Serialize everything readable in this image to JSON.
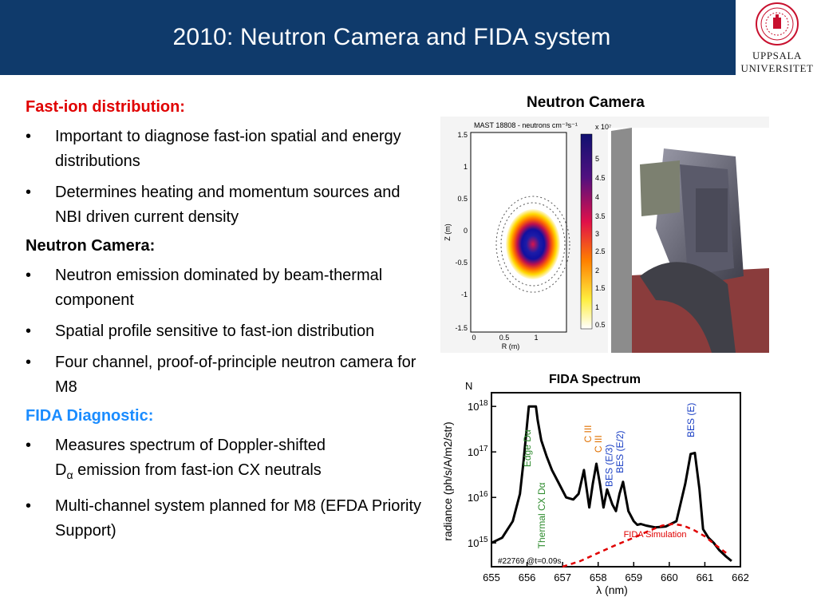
{
  "header": {
    "title": "2010: Neutron Camera and FIDA system",
    "bg": "#0f3a6b"
  },
  "logo": {
    "line1": "UPPSALA",
    "line2": "UNIVERSITET",
    "seal_color": "#c8102e"
  },
  "sections": [
    {
      "heading": "Fast-ion distribution:",
      "color": "#e00000",
      "bullets": [
        "Important to diagnose fast-ion spatial and energy distributions",
        "Determines heating and momentum sources and NBI driven current density"
      ]
    },
    {
      "heading": "Neutron Camera:",
      "color": "#000000",
      "bullets": [
        "Neutron emission dominated by beam-thermal component",
        "Spatial profile sensitive to fast-ion distribution",
        "Four channel, proof-of-principle neutron camera for M8"
      ]
    },
    {
      "heading": "FIDA Diagnostic:",
      "color": "#1a8cff",
      "bullets": [
        "Measures spectrum of Doppler-shifted",
        "Multi-channel system planned for M8 (EFDA Priority Support)"
      ],
      "dalpha_line": {
        "prefix": "D",
        "subscript": "α",
        "suffix": " emission from fast-ion CX neutrals"
      }
    }
  ],
  "neutron_figure": {
    "label": "Neutron Camera",
    "plot_title": "MAST 18808 - neutrons cm⁻³s⁻¹",
    "colorbar_exponent": "x 10⁷",
    "colorbar_ticks": [
      "5",
      "4.5",
      "4",
      "3.5",
      "3",
      "2.5",
      "2",
      "1.5",
      "1",
      "0.5"
    ],
    "y_ticks": [
      "1.5",
      "1",
      "0.5",
      "0",
      "-0.5",
      "-1",
      "-1.5"
    ],
    "x_ticks": [
      "0",
      "0.5",
      "1"
    ],
    "xlabel": "R (m)",
    "ylabel": "Z (m)"
  },
  "chart_data": {
    "type": "line",
    "title": "FIDA Spectrum",
    "top_left_fragment": "N",
    "xlabel": "λ (nm)",
    "ylabel": "radiance (ph/s/A/m2/str)",
    "x_ticks": [
      "655",
      "656",
      "657",
      "658",
      "659",
      "660",
      "661",
      "662"
    ],
    "xlim": [
      655,
      662
    ],
    "y_scale": "log",
    "y_ticks": [
      {
        "base": "10",
        "exp": "18",
        "value": 1e+18
      },
      {
        "base": "10",
        "exp": "17",
        "value": 1e+17
      },
      {
        "base": "10",
        "exp": "16",
        "value": 1e+16
      },
      {
        "base": "10",
        "exp": "15",
        "value": 1000000000000000.0
      }
    ],
    "ylim": [
      300000000000000.0,
      2e+18
    ],
    "shot_label": "#22769 @t=0.09s",
    "series": [
      {
        "name": "",
        "color": "#000000",
        "style": "solid",
        "x": [
          655.0,
          655.3,
          655.6,
          655.8,
          655.9,
          656.0,
          656.05,
          656.15,
          656.25,
          656.3,
          656.4,
          656.55,
          656.7,
          656.9,
          657.1,
          657.3,
          657.45,
          657.6,
          657.75,
          657.85,
          657.95,
          658.05,
          658.15,
          658.25,
          658.4,
          658.5,
          658.6,
          658.7,
          658.85,
          659.0,
          659.1,
          659.2,
          659.35,
          659.6,
          659.9,
          660.2,
          660.45,
          660.6,
          660.72,
          660.85,
          660.95,
          661.1,
          661.25,
          661.4,
          661.6,
          661.75
        ],
        "y": [
          1000000000000000.0,
          1300000000000000.0,
          3000000000000000.0,
          1.2e+16,
          6e+16,
          4e+17,
          1e+18,
          1e+18,
          1e+18,
          5e+17,
          1.8e+17,
          8e+16,
          4e+16,
          2e+16,
          1e+16,
          9000000000000000.0,
          1.2e+16,
          4e+16,
          6000000000000000.0,
          2e+16,
          5.5e+16,
          2e+16,
          6000000000000000.0,
          1.5e+16,
          7000000000000000.0,
          5000000000000000.0,
          1.2e+16,
          2.2e+16,
          5000000000000000.0,
          3000000000000000.0,
          2500000000000000.0,
          2600000000000000.0,
          2400000000000000.0,
          2200000000000000.0,
          2300000000000000.0,
          3000000000000000.0,
          2e+16,
          9e+16,
          9.5e+16,
          1.5e+16,
          2000000000000000.0,
          1300000000000000.0,
          1000000000000000.0,
          700000000000000.0,
          500000000000000.0,
          400000000000000.0
        ]
      },
      {
        "name": "FIDA Simulation",
        "color": "#e00000",
        "style": "dashed",
        "x": [
          657.0,
          657.5,
          658.0,
          658.5,
          659.0,
          659.4,
          659.8,
          660.1,
          660.4,
          660.7,
          661.0,
          661.3,
          661.6
        ],
        "y": [
          300000000000000.0,
          400000000000000.0,
          600000000000000.0,
          900000000000000.0,
          1300000000000000.0,
          1800000000000000.0,
          2400000000000000.0,
          2600000000000000.0,
          2400000000000000.0,
          1900000000000000.0,
          1400000000000000.0,
          900000000000000.0,
          600000000000000.0
        ]
      }
    ],
    "annotations": [
      {
        "text": "Edge Dα",
        "color": "#2e8b2e",
        "x": 656.1,
        "y_label": 1.2e+17
      },
      {
        "text": "Thermal CX Dα",
        "color": "#2e8b2e",
        "x": 656.5,
        "y_label": 4000000000000000.0
      },
      {
        "text": "C III",
        "color": "#e07000",
        "x": 657.8,
        "y_label": 2.5e+17
      },
      {
        "text": "C III",
        "color": "#e07000",
        "x": 658.1,
        "y_label": 1.5e+17
      },
      {
        "text": "BES (E/3)",
        "color": "#1a3fc4",
        "x": 658.4,
        "y_label": 5e+16
      },
      {
        "text": "BES (E/2)",
        "color": "#1a3fc4",
        "x": 658.7,
        "y_label": 1e+17
      },
      {
        "text": "BES (E)",
        "color": "#1a3fc4",
        "x": 660.7,
        "y_label": 5e+17
      }
    ]
  }
}
